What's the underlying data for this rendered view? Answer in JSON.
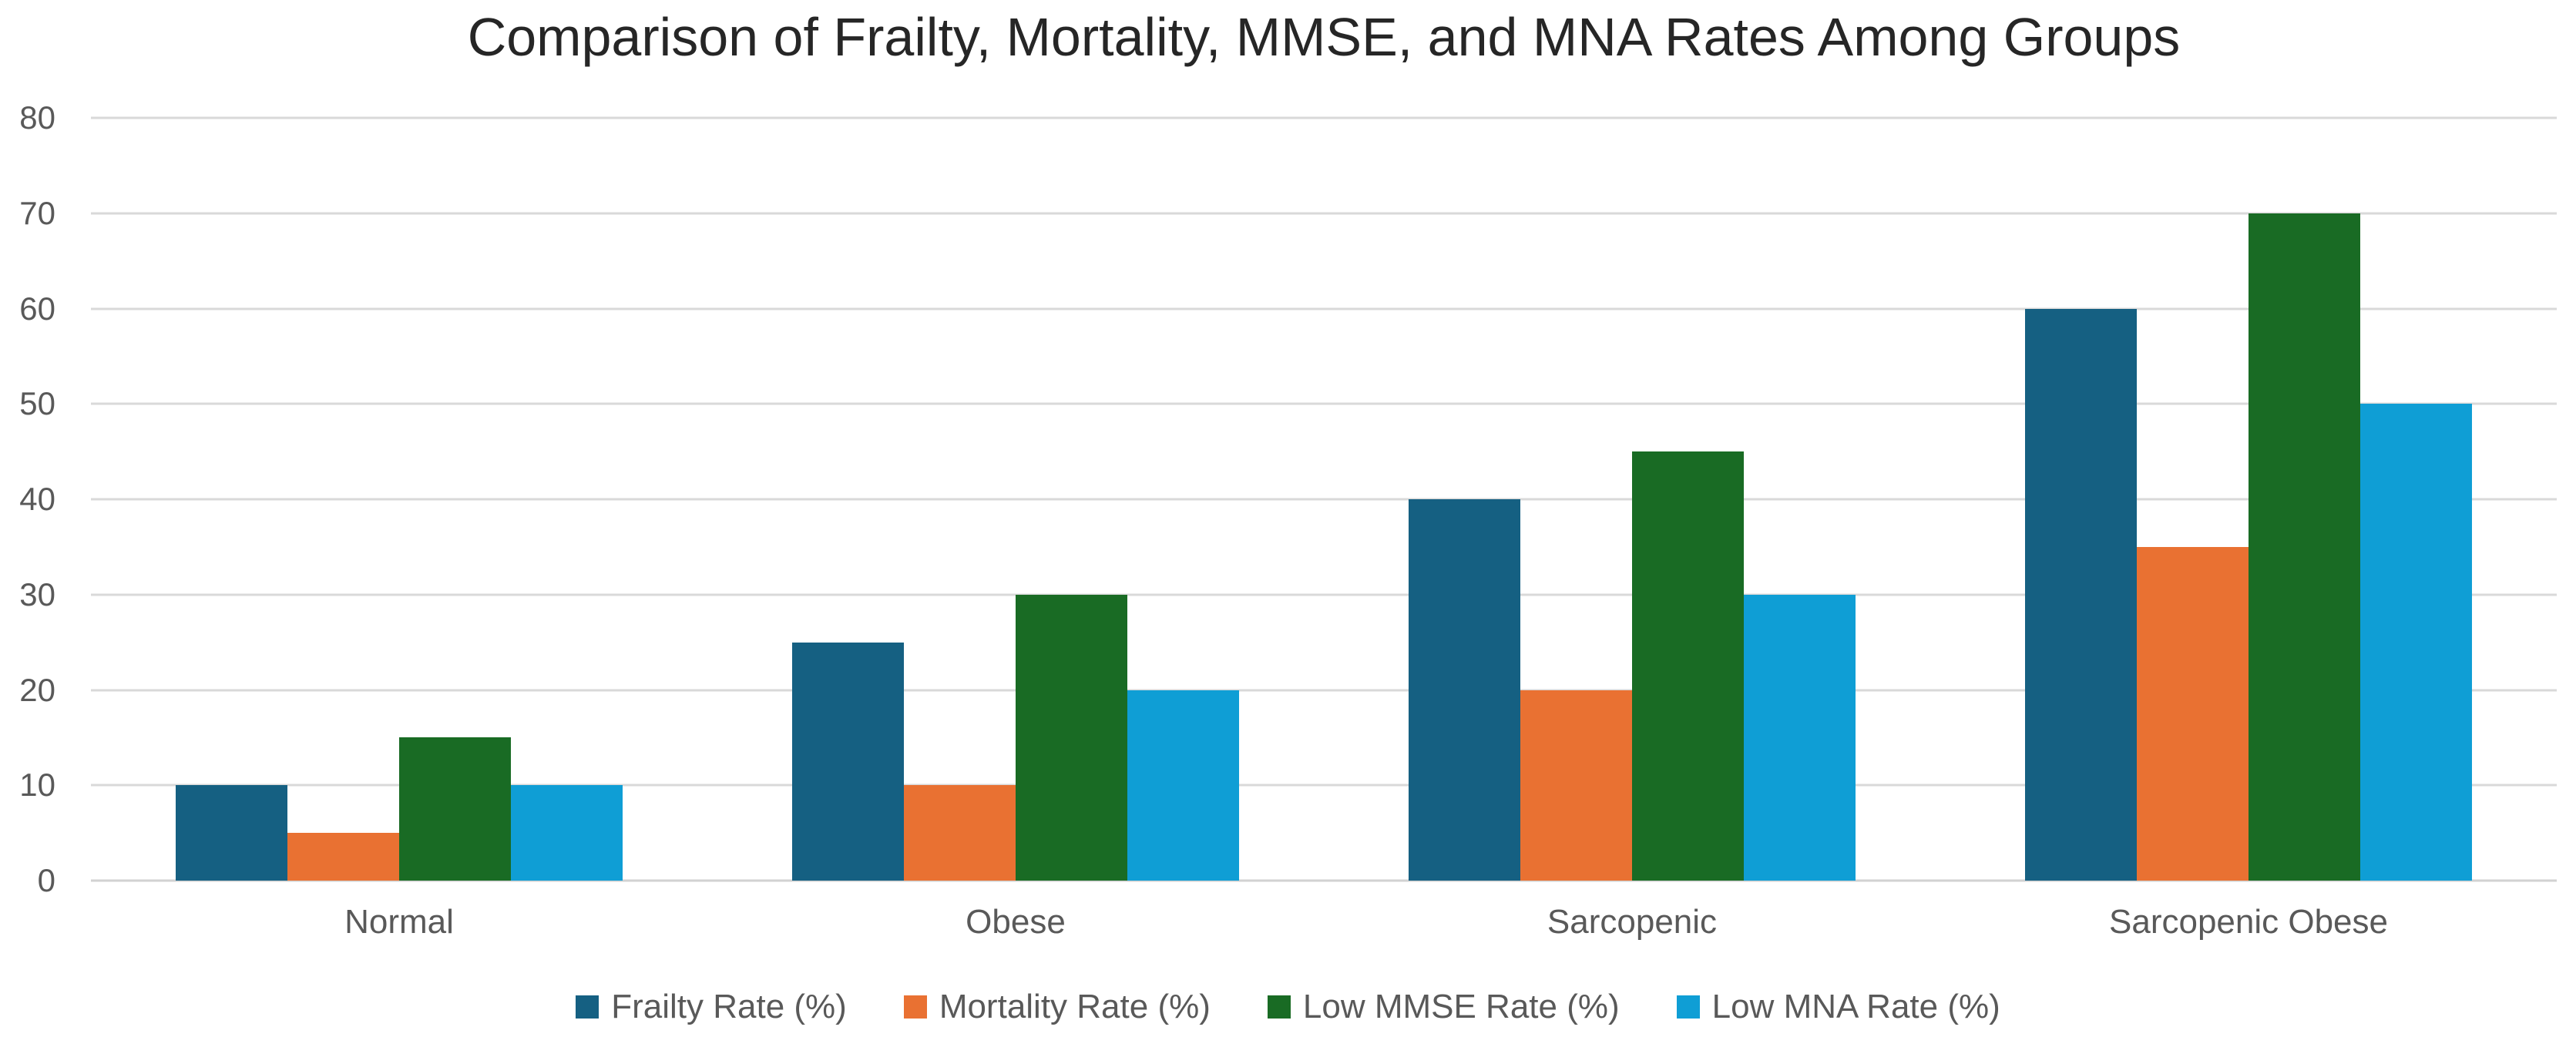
{
  "chart_data": {
    "type": "bar",
    "title": "Comparison of Frailty, Mortality, MMSE, and MNA Rates Among Groups",
    "xlabel": "",
    "ylabel": "",
    "categories": [
      "Normal",
      "Obese",
      "Sarcopenic",
      "Sarcopenic Obese"
    ],
    "series": [
      {
        "name": "Frailty Rate (%)",
        "color": "#156082",
        "values": [
          10,
          25,
          40,
          60
        ]
      },
      {
        "name": "Mortality Rate (%)",
        "color": "#E97132",
        "values": [
          5,
          10,
          20,
          35
        ]
      },
      {
        "name": "Low MMSE Rate (%)",
        "color": "#196B24",
        "values": [
          15,
          30,
          45,
          70
        ]
      },
      {
        "name": "Low MNA Rate (%)",
        "color": "#0F9ED5",
        "values": [
          10,
          20,
          30,
          50
        ]
      }
    ],
    "ylim": [
      0,
      80
    ],
    "yticks": [
      0,
      10,
      20,
      30,
      40,
      50,
      60,
      70,
      80
    ],
    "grid": true,
    "legend_position": "bottom"
  },
  "styles": {
    "background": "#FFFFFF",
    "grid_color": "#D9D9D9",
    "axis_text_color": "#595959",
    "title_color": "#262626"
  }
}
